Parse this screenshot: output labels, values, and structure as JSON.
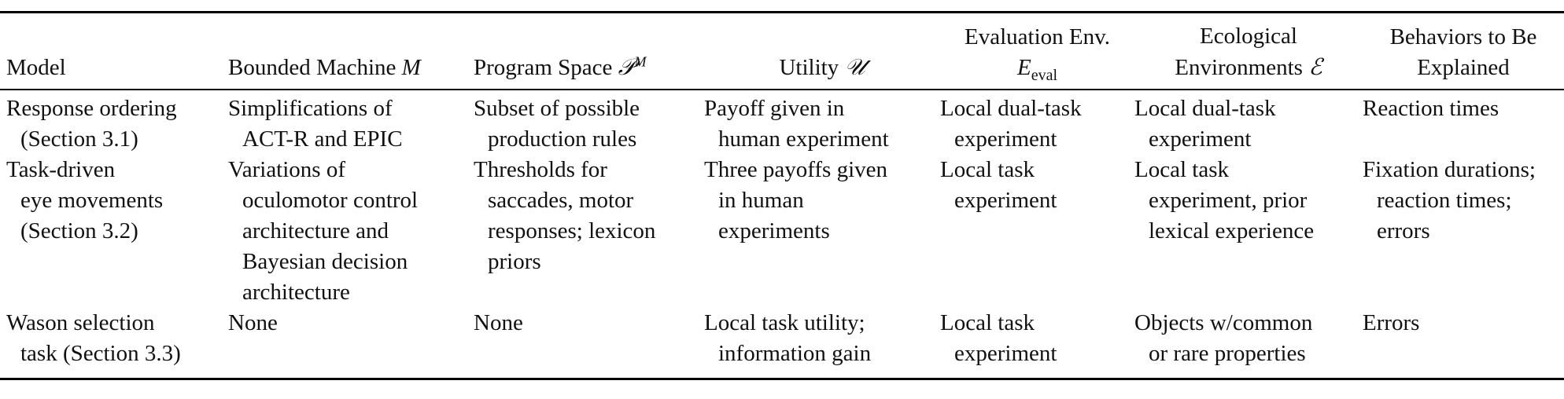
{
  "table": {
    "headers": {
      "model": "Model",
      "machine": "Bounded Machine",
      "machine_sym": "M",
      "program": "Program Space",
      "program_sym": "𝒫",
      "program_sup": "M",
      "utility": "Utility",
      "utility_sym": "𝒰",
      "evalenv_line1": "Evaluation Env.",
      "evalenv_sym": "E",
      "evalenv_sub": "eval",
      "eco_line1": "Ecological",
      "eco_line2": "Environments",
      "eco_sym": "ℰ",
      "behav_line1": "Behaviors to Be",
      "behav_line2": "Explained"
    },
    "rows": [
      {
        "model": [
          "Response ordering",
          "(Section 3.1)"
        ],
        "machine": [
          "Simplifications of",
          "ACT-R and EPIC"
        ],
        "program": [
          "Subset of possible",
          "production rules"
        ],
        "utility": [
          "Payoff given in",
          "human experiment"
        ],
        "evalenv": [
          "Local dual-task",
          "experiment"
        ],
        "eco": [
          "Local dual-task",
          "experiment"
        ],
        "behav": [
          "Reaction times"
        ]
      },
      {
        "model": [
          "Task-driven",
          "eye movements",
          "(Section 3.2)"
        ],
        "machine": [
          "Variations of",
          "oculomotor control",
          "architecture and",
          "Bayesian decision",
          "architecture"
        ],
        "program": [
          "Thresholds for",
          "saccades, motor",
          "responses; lexicon",
          "priors"
        ],
        "utility": [
          "Three payoffs given",
          "in human",
          "experiments"
        ],
        "evalenv": [
          "Local task",
          "experiment"
        ],
        "eco": [
          "Local task",
          "experiment, prior",
          "lexical experience"
        ],
        "behav": [
          "Fixation durations;",
          "reaction times;",
          "errors"
        ]
      },
      {
        "model": [
          "Wason selection",
          "task (Section 3.3)"
        ],
        "machine": [
          "None"
        ],
        "program": [
          "None"
        ],
        "utility": [
          "Local task utility;",
          "information gain"
        ],
        "evalenv": [
          "Local task",
          "experiment"
        ],
        "eco": [
          "Objects w/common",
          "or rare properties"
        ],
        "behav": [
          "Errors"
        ]
      }
    ]
  }
}
